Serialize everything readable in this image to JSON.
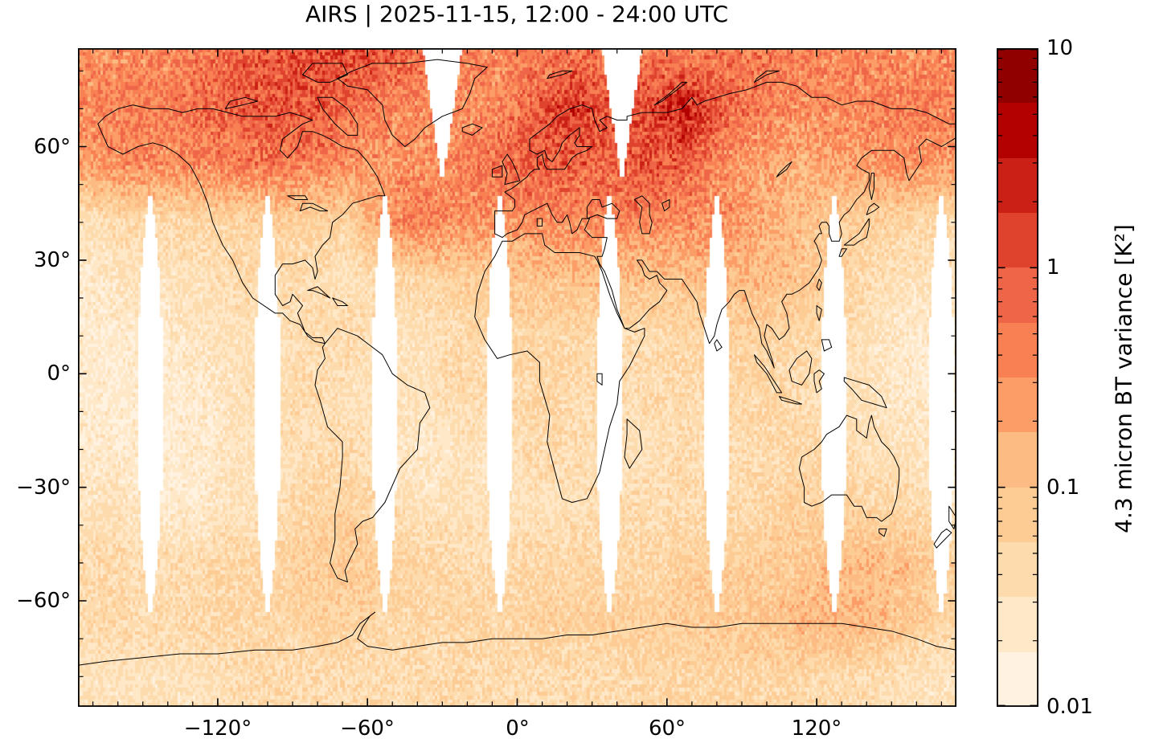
{
  "chart_data": {
    "type": "heatmap",
    "title": "AIRS | 2025-11-15, 12:00 - 24:00 UTC",
    "projection": "equirectangular",
    "x_axis": {
      "unit": "degrees longitude",
      "range": [
        -176,
        176
      ],
      "ticks": {
        "values": [
          -120,
          -60,
          0,
          60,
          120
        ],
        "labels": [
          "−120°",
          "−60°",
          "0°",
          "60°",
          "120°"
        ],
        "minor_step": 10
      }
    },
    "y_axis": {
      "unit": "degrees latitude",
      "range": [
        -88,
        86
      ],
      "ticks": {
        "values": [
          60,
          30,
          0,
          -30,
          -60
        ],
        "labels": [
          "60°",
          "30°",
          "0°",
          "−30°",
          "−60°"
        ],
        "minor_step": 10
      }
    },
    "colorbar": {
      "label": "4.3 micron BT variance [K²]",
      "scale": "log",
      "range": [
        0.01,
        10
      ],
      "tick_labels": [
        "10",
        "1",
        "0.1",
        "0.01"
      ],
      "tick_values": [
        10,
        1,
        0.1,
        0.01
      ],
      "n_bands": 12,
      "colormap": "OrRd",
      "colormap_stops": [
        "#fff7ec",
        "#fee8c8",
        "#fdd49e",
        "#fdbb84",
        "#fc8d59",
        "#ef6548",
        "#d7301f",
        "#b30000",
        "#7f0000"
      ]
    },
    "grid": {
      "units": "K²",
      "lon_centers": [
        -172.5,
        -157.5,
        -142.5,
        -127.5,
        -112.5,
        -97.5,
        -82.5,
        -67.5,
        -52.5,
        -37.5,
        -22.5,
        -7.5,
        7.5,
        22.5,
        37.5,
        52.5,
        67.5,
        82.5,
        97.5,
        112.5,
        127.5,
        142.5,
        157.5,
        172.5
      ],
      "lat_centers": [
        85,
        70,
        55,
        40,
        25,
        10,
        -5,
        -20,
        -35,
        -50,
        -65,
        -80
      ],
      "values": [
        [
          0.3,
          0.3,
          0.35,
          0.45,
          0.7,
          0.9,
          1.1,
          1.2,
          0.9,
          0.7,
          0.4,
          0.35,
          0.4,
          0.5,
          0.5,
          0.45,
          0.4,
          0.45,
          0.5,
          0.4,
          0.4,
          0.35,
          0.3,
          0.35
        ],
        [
          0.35,
          0.4,
          0.45,
          0.55,
          0.85,
          1.0,
          0.9,
          0.6,
          0.4,
          0.3,
          0.3,
          0.35,
          0.8,
          1.8,
          1.0,
          1.2,
          2.8,
          0.8,
          0.45,
          0.35,
          0.35,
          0.4,
          0.45,
          0.4
        ],
        [
          0.25,
          0.35,
          0.3,
          0.35,
          0.5,
          0.5,
          0.4,
          0.3,
          0.25,
          0.3,
          0.4,
          0.6,
          0.9,
          0.8,
          0.7,
          1.0,
          0.8,
          0.3,
          0.2,
          0.15,
          0.2,
          0.25,
          0.3,
          0.25
        ],
        [
          0.03,
          0.04,
          0.04,
          0.05,
          0.05,
          0.06,
          0.06,
          0.05,
          0.3,
          0.45,
          0.3,
          0.25,
          0.3,
          0.35,
          0.4,
          0.35,
          0.3,
          0.3,
          0.2,
          0.1,
          0.08,
          0.06,
          0.05,
          0.04
        ],
        [
          0.02,
          0.03,
          0.03,
          0.03,
          0.04,
          0.04,
          0.04,
          0.03,
          0.04,
          0.05,
          0.06,
          0.08,
          0.1,
          0.1,
          0.12,
          0.1,
          0.1,
          0.15,
          0.12,
          0.1,
          0.06,
          0.04,
          0.03,
          0.03
        ],
        [
          0.02,
          0.02,
          0.02,
          0.03,
          0.03,
          0.03,
          0.04,
          0.04,
          0.03,
          0.03,
          0.04,
          0.05,
          0.05,
          0.05,
          0.04,
          0.04,
          0.05,
          0.06,
          0.06,
          0.05,
          0.04,
          0.03,
          0.02,
          0.02
        ],
        [
          0.02,
          0.02,
          0.02,
          0.02,
          0.03,
          0.04,
          0.04,
          0.03,
          0.03,
          0.03,
          0.04,
          0.04,
          0.05,
          0.04,
          0.04,
          0.04,
          0.04,
          0.05,
          0.05,
          0.04,
          0.03,
          0.03,
          0.02,
          0.02
        ],
        [
          0.02,
          0.02,
          0.02,
          0.02,
          0.03,
          0.03,
          0.04,
          0.04,
          0.03,
          0.02,
          0.03,
          0.03,
          0.04,
          0.04,
          0.03,
          0.03,
          0.04,
          0.04,
          0.04,
          0.05,
          0.04,
          0.03,
          0.03,
          0.02
        ],
        [
          0.03,
          0.03,
          0.02,
          0.02,
          0.03,
          0.03,
          0.05,
          0.06,
          0.04,
          0.03,
          0.03,
          0.03,
          0.03,
          0.03,
          0.04,
          0.04,
          0.04,
          0.04,
          0.05,
          0.06,
          0.06,
          0.05,
          0.04,
          0.03
        ],
        [
          0.04,
          0.04,
          0.04,
          0.04,
          0.05,
          0.05,
          0.07,
          0.08,
          0.06,
          0.05,
          0.04,
          0.04,
          0.05,
          0.05,
          0.05,
          0.05,
          0.06,
          0.06,
          0.06,
          0.08,
          0.1,
          0.12,
          0.1,
          0.06
        ],
        [
          0.04,
          0.04,
          0.04,
          0.05,
          0.05,
          0.05,
          0.06,
          0.06,
          0.05,
          0.05,
          0.05,
          0.05,
          0.06,
          0.06,
          0.06,
          0.06,
          0.07,
          0.08,
          0.1,
          0.12,
          0.15,
          0.12,
          0.08,
          0.05
        ],
        [
          0.03,
          0.03,
          0.03,
          0.03,
          0.04,
          0.04,
          0.04,
          0.04,
          0.04,
          0.04,
          0.04,
          0.04,
          0.04,
          0.04,
          0.04,
          0.05,
          0.05,
          0.05,
          0.05,
          0.05,
          0.04,
          0.04,
          0.03,
          0.03
        ]
      ]
    },
    "swath_gaps": {
      "meaning": "white lens-shaped regions = no data between adjacent satellite orbit swaths",
      "equatorial": {
        "lon_centers": [
          -147,
          -100,
          -53,
          -7,
          37,
          80,
          127,
          170
        ],
        "lat_center": -8,
        "lat_half_extent": 56,
        "max_half_width_deg": 5.2
      },
      "polar": {
        "lon_centers": [
          -30,
          42
        ],
        "lat_start": 50,
        "half_width_at_top_deg": 8
      }
    }
  }
}
